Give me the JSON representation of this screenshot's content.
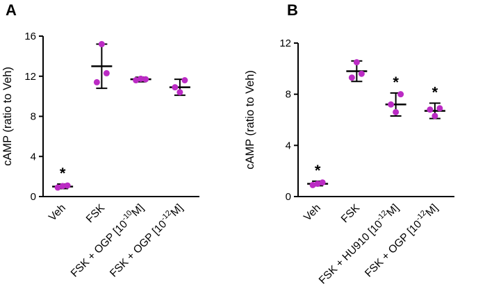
{
  "figure": {
    "background": "#ffffff",
    "point_color": "#BB2BC4",
    "line_color": "#000000",
    "significance_marker": "*"
  },
  "panels": [
    {
      "letter": "A"
    },
    {
      "letter": "B"
    }
  ],
  "chart_data": [
    {
      "type": "scatter",
      "panel": "A",
      "title": "",
      "xlabel": "",
      "ylabel": "cAMP (ratio to Veh)",
      "ylim": [
        0,
        16
      ],
      "yticks": [
        0,
        4,
        8,
        12,
        16
      ],
      "grid": false,
      "legend": false,
      "categories": [
        {
          "pre": "Veh",
          "sup": "",
          "post": ""
        },
        {
          "pre": "FSK",
          "sup": "",
          "post": ""
        },
        {
          "pre": "FSK + OGP [10",
          "sup": "-10",
          "post": "M]"
        },
        {
          "pre": "FSK + OGP [10",
          "sup": "-12",
          "post": "M]"
        }
      ],
      "groups": [
        {
          "points": [
            0.9,
            1.05,
            1.1
          ],
          "mean": 1.0,
          "err_low": 0.8,
          "err_high": 1.25,
          "significant": true
        },
        {
          "points": [
            11.4,
            15.2,
            12.3
          ],
          "mean": 13.0,
          "err_low": 10.8,
          "err_high": 15.2,
          "significant": false
        },
        {
          "points": [
            11.6,
            11.75,
            11.7
          ],
          "mean": 11.7,
          "err_low": 11.45,
          "err_high": 11.9,
          "significant": false
        },
        {
          "points": [
            10.9,
            10.4,
            11.6
          ],
          "mean": 10.9,
          "err_low": 10.1,
          "err_high": 11.7,
          "significant": false
        }
      ]
    },
    {
      "type": "scatter",
      "panel": "B",
      "title": "",
      "xlabel": "",
      "ylabel": "cAMP (ratio to Veh)",
      "ylim": [
        0,
        12
      ],
      "yticks": [
        0,
        4,
        8,
        12
      ],
      "grid": false,
      "legend": false,
      "categories": [
        {
          "pre": "Veh",
          "sup": "",
          "post": ""
        },
        {
          "pre": "FSK",
          "sup": "",
          "post": ""
        },
        {
          "pre": "FSK + HU910 [10",
          "sup": "-12",
          "post": "M]"
        },
        {
          "pre": "FSK + OGP [10",
          "sup": "-12",
          "post": "M]"
        }
      ],
      "groups": [
        {
          "points": [
            0.9,
            1.0,
            1.1
          ],
          "mean": 1.0,
          "err_low": 0.85,
          "err_high": 1.2,
          "significant": true
        },
        {
          "points": [
            9.3,
            10.5,
            9.6
          ],
          "mean": 9.8,
          "err_low": 9.0,
          "err_high": 10.6,
          "significant": false
        },
        {
          "points": [
            7.2,
            6.6,
            8.0
          ],
          "mean": 7.2,
          "err_low": 6.3,
          "err_high": 8.1,
          "significant": true
        },
        {
          "points": [
            6.8,
            6.3,
            6.9
          ],
          "mean": 6.7,
          "err_low": 6.1,
          "err_high": 7.3,
          "significant": true
        }
      ]
    }
  ]
}
